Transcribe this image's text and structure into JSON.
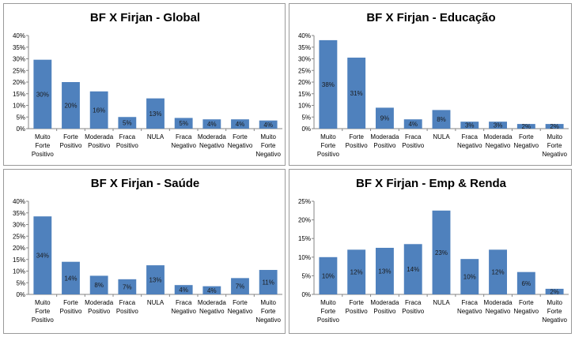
{
  "chart_data": [
    {
      "type": "bar",
      "title": "BF X Firjan - Global",
      "categories": [
        [
          "Muito",
          "Forte",
          "Positivo"
        ],
        [
          "Forte",
          "Positivo"
        ],
        [
          "Moderada",
          "Positivo"
        ],
        [
          "Fraca",
          "Positivo"
        ],
        [
          "NULA"
        ],
        [
          "Fraca",
          "Negativo"
        ],
        [
          "Moderada",
          "Negativo"
        ],
        [
          "Forte",
          "Negativo"
        ],
        [
          "Muito",
          "Forte",
          "Negativo"
        ]
      ],
      "values": [
        30,
        20,
        16,
        5,
        13,
        5,
        4,
        4,
        4
      ],
      "bar_heights": [
        29.6,
        20.0,
        16.0,
        5.0,
        13.0,
        4.6,
        4.0,
        4.0,
        3.5
      ],
      "ylim": [
        0,
        40
      ],
      "yticks": [
        "0%",
        "5%",
        "10%",
        "15%",
        "20%",
        "25%",
        "30%",
        "35%",
        "40%"
      ],
      "grid": false,
      "legend": "none",
      "bar_color": "#4f81bd"
    },
    {
      "type": "bar",
      "title": "BF X Firjan - Educação",
      "categories": [
        [
          "Muito",
          "Forte",
          "Positivo"
        ],
        [
          "Forte",
          "Positivo"
        ],
        [
          "Moderada",
          "Positivo"
        ],
        [
          "Fraca",
          "Positivo"
        ],
        [
          "NULA"
        ],
        [
          "Fraca",
          "Negativo"
        ],
        [
          "Moderada",
          "Negativo"
        ],
        [
          "Forte",
          "Negativo"
        ],
        [
          "Muito",
          "Forte",
          "Negativo"
        ]
      ],
      "values": [
        38,
        31,
        9,
        4,
        8,
        3,
        3,
        2,
        2
      ],
      "bar_heights": [
        38.0,
        30.5,
        9.0,
        4.0,
        8.0,
        3.0,
        3.0,
        2.0,
        2.0
      ],
      "ylim": [
        0,
        40
      ],
      "yticks": [
        "0%",
        "5%",
        "10%",
        "15%",
        "20%",
        "25%",
        "30%",
        "35%",
        "40%"
      ],
      "grid": false,
      "legend": "none",
      "bar_color": "#4f81bd"
    },
    {
      "type": "bar",
      "title": "BF X Firjan - Saúde",
      "categories": [
        [
          "Muito",
          "Forte",
          "Positivo"
        ],
        [
          "Forte",
          "Positivo"
        ],
        [
          "Moderada",
          "Positivo"
        ],
        [
          "Fraca",
          "Positivo"
        ],
        [
          "NULA"
        ],
        [
          "Fraca",
          "Negativo"
        ],
        [
          "Moderada",
          "Negativo"
        ],
        [
          "Forte",
          "Negativo"
        ],
        [
          "Muito",
          "Forte",
          "Negativo"
        ]
      ],
      "values": [
        34,
        14,
        8,
        7,
        13,
        4,
        4,
        7,
        11
      ],
      "bar_heights": [
        33.5,
        14.0,
        8.0,
        6.5,
        12.5,
        4.0,
        3.5,
        7.0,
        10.5
      ],
      "ylim": [
        0,
        40
      ],
      "yticks": [
        "0%",
        "5%",
        "10%",
        "15%",
        "20%",
        "25%",
        "30%",
        "35%",
        "40%"
      ],
      "grid": false,
      "legend": "none",
      "bar_color": "#4f81bd"
    },
    {
      "type": "bar",
      "title": "BF X Firjan - Emp & Renda",
      "categories": [
        [
          "Muito",
          "Forte",
          "Positivo"
        ],
        [
          "Forte",
          "Positivo"
        ],
        [
          "Moderada",
          "Positivo"
        ],
        [
          "Fraca",
          "Positivo"
        ],
        [
          "NULA"
        ],
        [
          "Fraca",
          "Negativo"
        ],
        [
          "Moderada",
          "Negativo"
        ],
        [
          "Forte",
          "Negativo"
        ],
        [
          "Muito",
          "Forte",
          "Negativo"
        ]
      ],
      "values": [
        10,
        12,
        13,
        14,
        23,
        10,
        12,
        6,
        2
      ],
      "bar_heights": [
        10.0,
        12.0,
        12.5,
        13.5,
        22.5,
        9.5,
        12.0,
        6.0,
        1.5
      ],
      "ylim": [
        0,
        25
      ],
      "yticks": [
        "0%",
        "5%",
        "10%",
        "15%",
        "20%",
        "25%"
      ],
      "grid": false,
      "legend": "none",
      "bar_color": "#4f81bd"
    }
  ]
}
